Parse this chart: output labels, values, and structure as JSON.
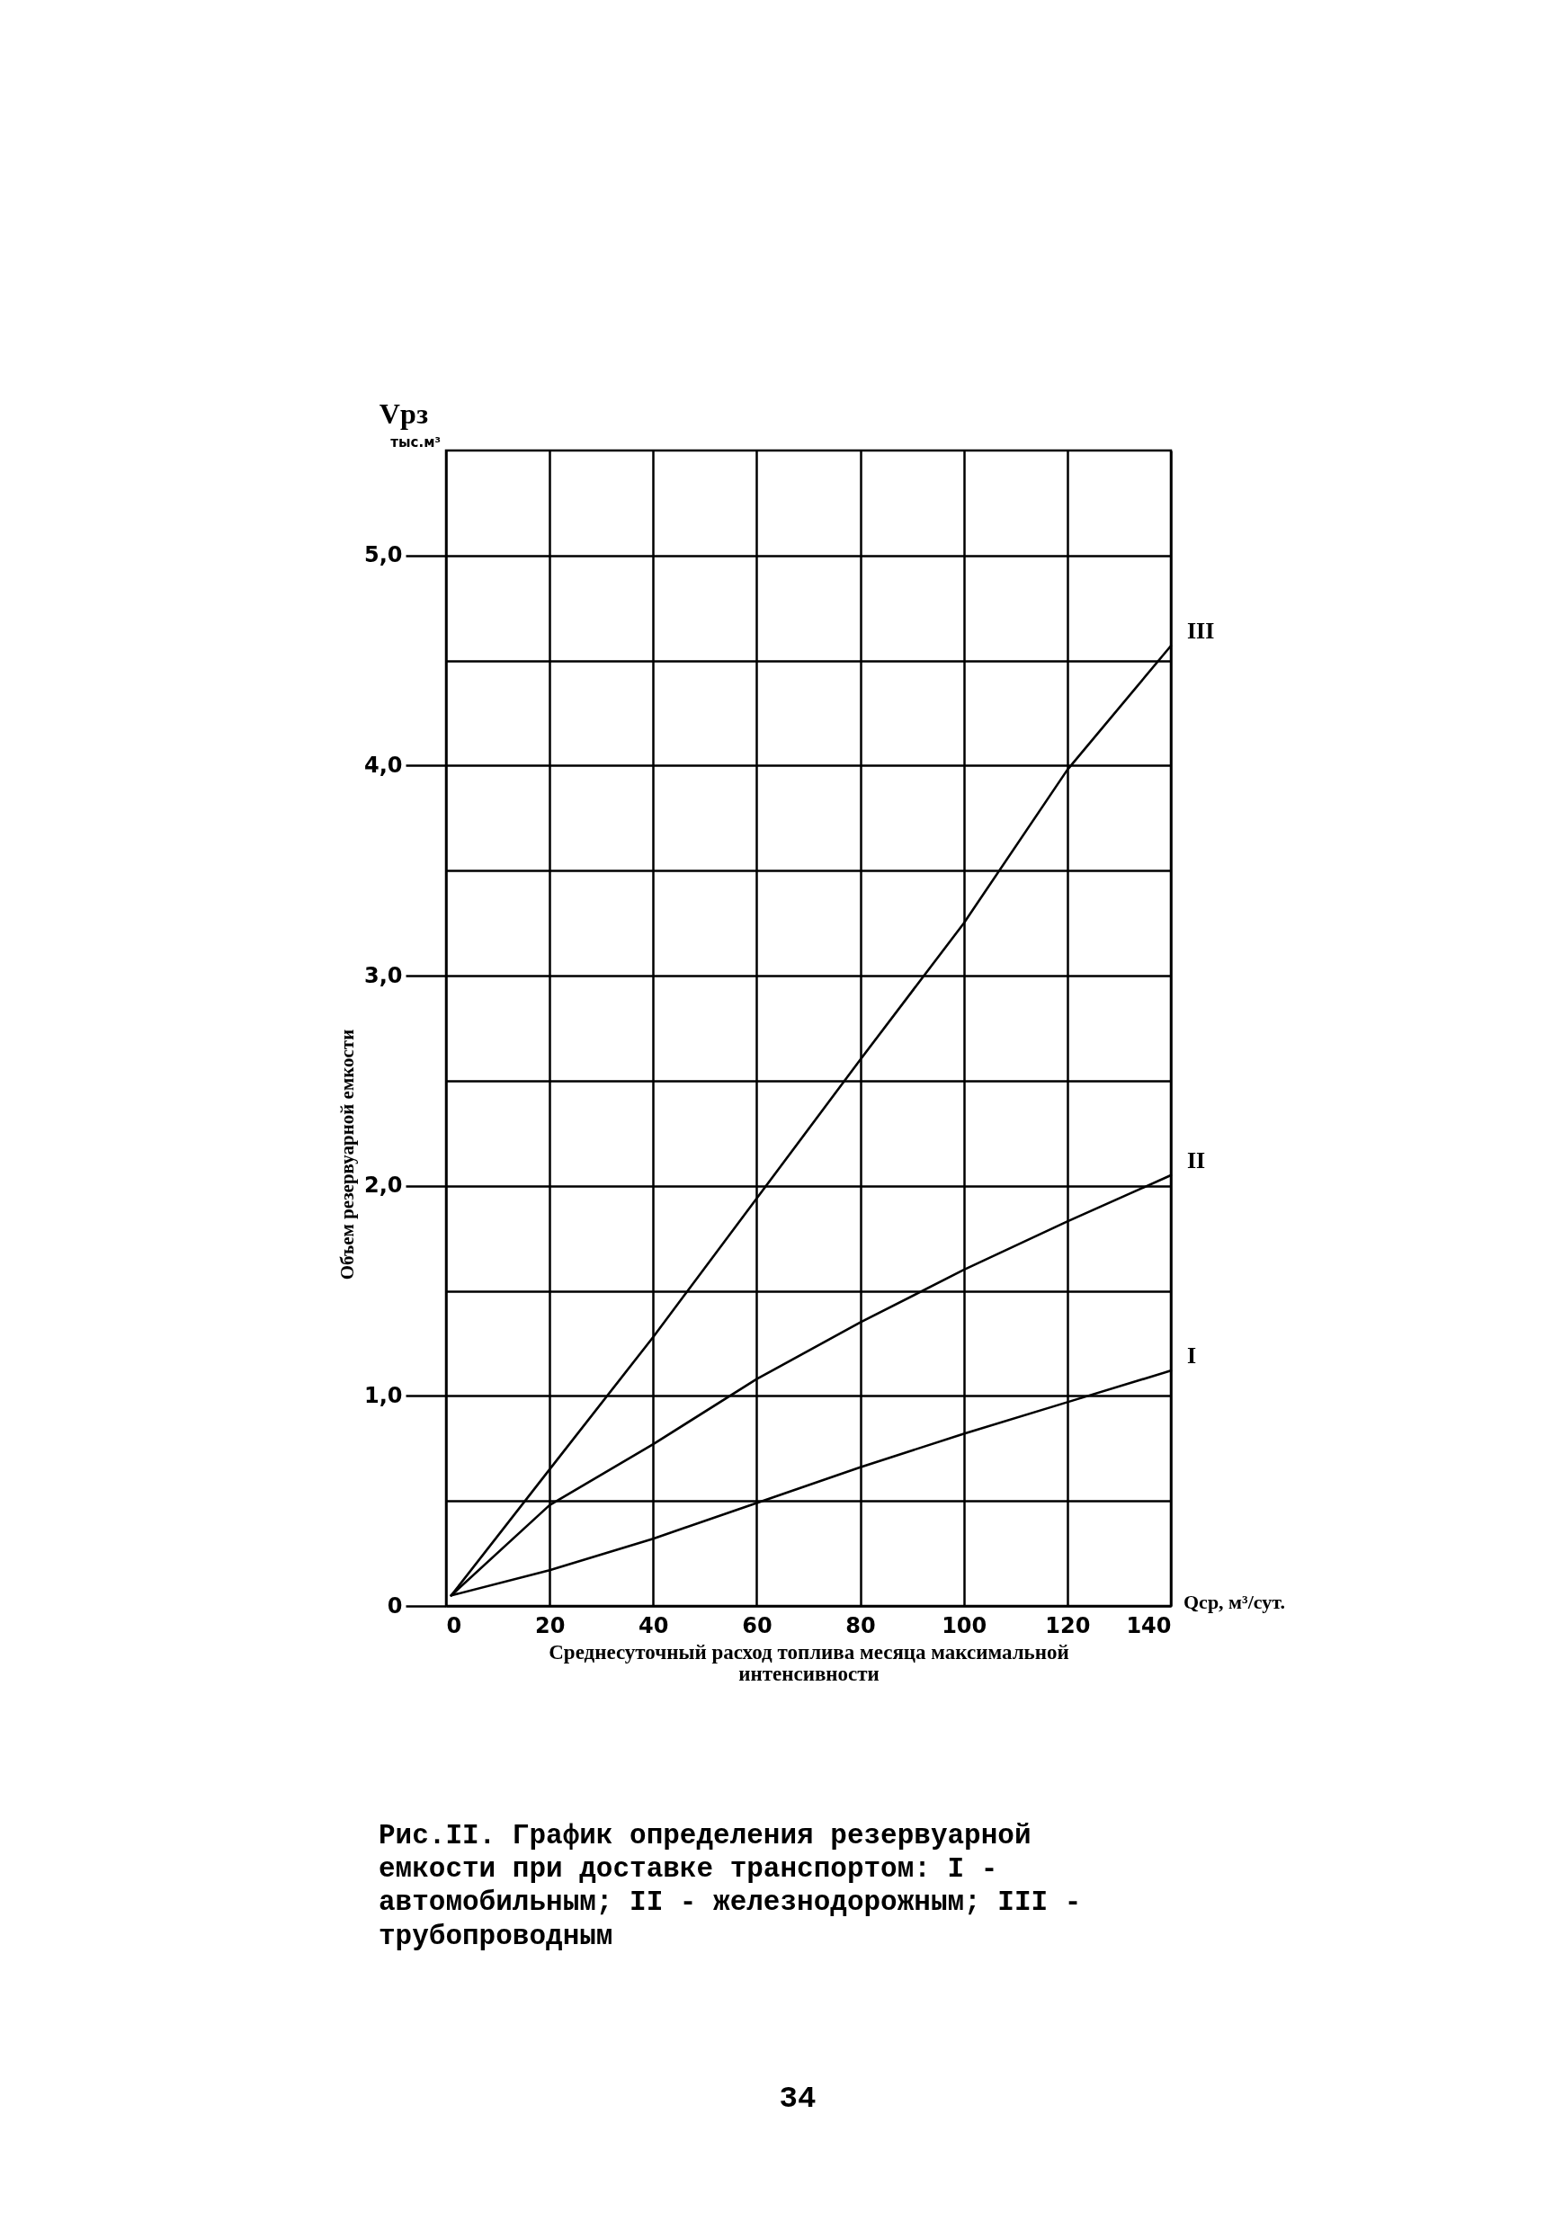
{
  "chart_data": {
    "type": "line",
    "xlabel": "Среднесуточный расход топлива месяца максимальной интенсивности",
    "ylabel": "Объем резервуарной емкости",
    "annotations": [
      "Vрз",
      "тыс.м³",
      "Qср, м³/сут.",
      "Рис.II. График определения резервуарной емкости при доставке транспортом: I - автомобильным; II - железнодорожным; III - трубопроводным",
      "34"
    ],
    "x": [
      1,
      20,
      40,
      60,
      80,
      100,
      120,
      140
    ],
    "series": [
      {
        "name": "I",
        "color": "#000000",
        "values": [
          0.05,
          0.17,
          0.32,
          0.49,
          0.66,
          0.82,
          0.97,
          1.12
        ]
      },
      {
        "name": "II",
        "color": "#000000",
        "values": [
          0.05,
          0.48,
          0.77,
          1.08,
          1.35,
          1.6,
          1.83,
          2.05
        ]
      },
      {
        "name": "III",
        "color": "#000000",
        "values": [
          0.05,
          0.65,
          1.28,
          1.94,
          2.6,
          3.25,
          3.98,
          4.57
        ]
      }
    ],
    "xlim": [
      0,
      140
    ],
    "xticks": [
      0,
      20,
      40,
      60,
      80,
      100,
      120,
      140
    ],
    "ylim": [
      0,
      5.5
    ],
    "yticks": [
      0,
      {
        "value": 0.5,
        "label": null
      },
      {
        "value": 1,
        "label": "1,0"
      },
      {
        "value": 1.5,
        "label": null
      },
      {
        "value": 2,
        "label": "2,0"
      },
      {
        "value": 2.5,
        "label": null
      },
      {
        "value": 3,
        "label": "3,0"
      },
      {
        "value": 3.5,
        "label": null
      },
      {
        "value": 4,
        "label": "4,0"
      },
      {
        "value": 4.5,
        "label": null
      },
      {
        "value": 5,
        "label": "5,0"
      }
    ],
    "grid": true,
    "legend": false,
    "line_style": "solid"
  }
}
